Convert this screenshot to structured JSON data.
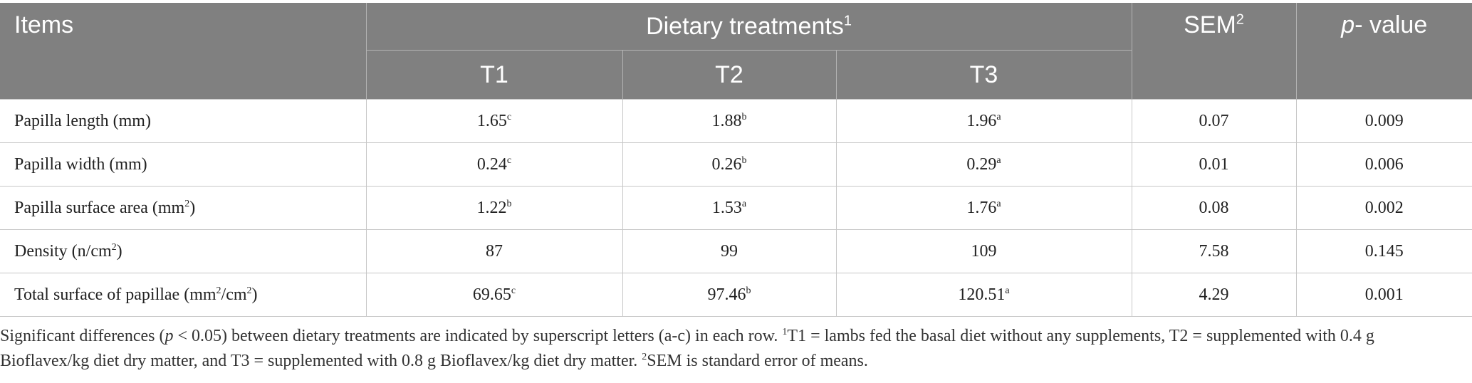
{
  "header": {
    "items": "Items",
    "group": "Dietary treatments",
    "group_sup": "1",
    "sem": "SEM",
    "sem_sup": "2",
    "pvalue_p": "p",
    "pvalue_rest": "- value",
    "treatments": [
      "T1",
      "T2",
      "T3"
    ]
  },
  "rows": [
    {
      "label": "Papilla length (mm)",
      "t1": "1.65",
      "t1_sup": "c",
      "t2": "1.88",
      "t2_sup": "b",
      "t3": "1.96",
      "t3_sup": "a",
      "sem": "0.07",
      "p": "0.009"
    },
    {
      "label": "Papilla width (mm)",
      "t1": "0.24",
      "t1_sup": "c",
      "t2": "0.26",
      "t2_sup": "b",
      "t3": "0.29",
      "t3_sup": "a",
      "sem": "0.01",
      "p": "0.006"
    },
    {
      "label_pre": "Papilla surface area (mm",
      "label_sup": "2",
      "label_post": ")",
      "t1": "1.22",
      "t1_sup": "b",
      "t2": "1.53",
      "t2_sup": "a",
      "t3": "1.76",
      "t3_sup": "a",
      "sem": "0.08",
      "p": "0.002"
    },
    {
      "label_pre": "Density (n/cm",
      "label_sup": "2",
      "label_post": ")",
      "t1": "87",
      "t2": "99",
      "t3": "109",
      "sem": "7.58",
      "p": "0.145"
    },
    {
      "label_pre": "Total surface of papillae (mm",
      "label_sup": "2",
      "label_mid": "/cm",
      "label_sup2": "2",
      "label_post": ")",
      "t1": "69.65",
      "t1_sup": "c",
      "t2": "97.46",
      "t2_sup": "b",
      "t3": "120.51",
      "t3_sup": "a",
      "sem": "4.29",
      "p": "0.001"
    }
  ],
  "note": {
    "a": "Significant differences (",
    "p": "p",
    "b": " < 0.05) between dietary treatments are indicated by superscript letters (a-c) in each row. ",
    "s1": "1",
    "c": "T1 = lambs fed the basal diet without any supplements, T2 = supplemented with 0.4 g Bioflavex/kg diet dry matter, and T3 = supplemented with 0.8 g Bioflavex/kg diet dry matter. ",
    "s2": "2",
    "d": "SEM is standard error of means."
  }
}
